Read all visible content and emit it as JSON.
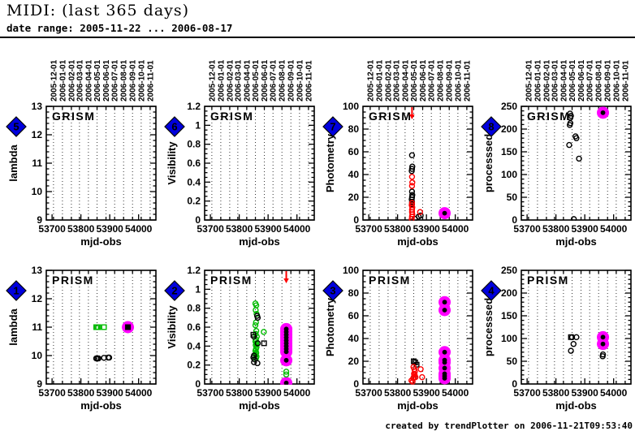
{
  "header": {
    "title": "MIDI: (last 365 days)",
    "subtitle": "date range: 2005-11-22 ... 2006-08-17"
  },
  "footer": {
    "credit": "created by trendPlotter on 2006-11-21T09:53:40"
  },
  "colors": {
    "magenta": "#ff00ff",
    "red": "#ff0000",
    "green": "#00bb00",
    "black": "#000000",
    "badge_blue": "#0000dd",
    "badge_number_yellow": "#ffff00"
  },
  "axes_shared": {
    "x": {
      "label": "mjd-obs",
      "min": 53680,
      "max": 54060,
      "ticks": [
        53700,
        53800,
        53900,
        54000
      ],
      "months": [
        {
          "mjd": 53705,
          "label": "2005-12-01"
        },
        {
          "mjd": 53736,
          "label": "2006-01-01"
        },
        {
          "mjd": 53767,
          "label": "2006-02-01"
        },
        {
          "mjd": 53795,
          "label": "2006-03-01"
        },
        {
          "mjd": 53826,
          "label": "2006-04-01"
        },
        {
          "mjd": 53856,
          "label": "2006-05-01"
        },
        {
          "mjd": 53887,
          "label": "2006-06-01"
        },
        {
          "mjd": 53917,
          "label": "2006-07-01"
        },
        {
          "mjd": 53948,
          "label": "2006-08-01"
        },
        {
          "mjd": 53979,
          "label": "2006-09-01"
        },
        {
          "mjd": 54009,
          "label": "2006-10-01"
        },
        {
          "mjd": 54040,
          "label": "2006-11-01"
        }
      ]
    }
  },
  "chart_data": [
    {
      "id": "grism-lambda",
      "type": "scatter",
      "row": 0,
      "col": 0,
      "marker_number": "5",
      "inset_label": "GRISM",
      "ylabel": "lambda",
      "ylim": [
        9,
        13
      ],
      "yticks": [
        9,
        10,
        11,
        12,
        13
      ],
      "yminor_div": 5,
      "series": [],
      "annotations": []
    },
    {
      "id": "grism-visibility",
      "type": "scatter",
      "row": 0,
      "col": 1,
      "marker_number": "6",
      "inset_label": "GRISM",
      "ylabel": "Visibility",
      "ylim": [
        0,
        1.2
      ],
      "yticks": [
        0,
        0.2,
        0.4,
        0.6,
        0.8,
        1,
        1.2
      ],
      "yminor_div": 4,
      "series": [],
      "annotations": []
    },
    {
      "id": "grism-photometry",
      "type": "scatter",
      "row": 0,
      "col": 2,
      "marker_number": "7",
      "inset_label": "GRISM",
      "ylabel": "Photometry",
      "ylim": [
        0,
        100
      ],
      "yticks": [
        0,
        20,
        40,
        60,
        80,
        100
      ],
      "yminor_div": 4,
      "series": [
        {
          "name": "photometry-black",
          "marker": "circle-open",
          "color": "#000000",
          "points": [
            [
              53850,
              57
            ],
            [
              53851,
              47
            ],
            [
              53850,
              45
            ],
            [
              53849,
              43
            ],
            [
              53850,
              25
            ],
            [
              53851,
              22
            ],
            [
              53850,
              20
            ],
            [
              53849,
              18
            ],
            [
              53850,
              16
            ],
            [
              53850,
              14
            ],
            [
              53873,
              3
            ],
            [
              53880,
              4
            ],
            [
              53860,
              1
            ]
          ]
        },
        {
          "name": "photometry-red",
          "marker": "circle-open",
          "color": "#ff0000",
          "points": [
            [
              53850,
              38
            ],
            [
              53851,
              33
            ],
            [
              53850,
              30
            ],
            [
              53850,
              15
            ],
            [
              53849,
              13
            ],
            [
              53851,
              11
            ],
            [
              53850,
              9
            ],
            [
              53850,
              7
            ],
            [
              53851,
              5
            ],
            [
              53850,
              3
            ],
            [
              53849,
              1
            ],
            [
              53878,
              7
            ]
          ]
        },
        {
          "name": "latest-highlight",
          "marker": "highlight-dot",
          "color": "#ff00ff",
          "points": [
            [
              53963,
              6
            ]
          ]
        }
      ],
      "annotations": [
        {
          "type": "arrow-down",
          "x": 53850,
          "color": "#ff0000"
        }
      ]
    },
    {
      "id": "grism-processsed",
      "type": "scatter",
      "row": 0,
      "col": 3,
      "marker_number": "8",
      "inset_label": "GRISM",
      "ylabel": "processsed",
      "ylim": [
        0,
        250
      ],
      "yticks": [
        0,
        50,
        100,
        150,
        200,
        250
      ],
      "yminor_div": 5,
      "series": [
        {
          "name": "processed-black",
          "marker": "circle-open",
          "color": "#000000",
          "points": [
            [
              53849,
              234
            ],
            [
              53852,
              229
            ],
            [
              53850,
              225
            ],
            [
              53850,
              213
            ],
            [
              53848,
              209
            ],
            [
              53846,
              165
            ],
            [
              53868,
              184
            ],
            [
              53871,
              180
            ],
            [
              53880,
              135
            ],
            [
              53862,
              2
            ]
          ]
        },
        {
          "name": "latest-highlight",
          "marker": "highlight-dot",
          "color": "#ff00ff",
          "points": [
            [
              53963,
              236
            ]
          ]
        }
      ],
      "annotations": []
    },
    {
      "id": "prism-lambda",
      "type": "scatter",
      "row": 1,
      "col": 0,
      "marker_number": "1",
      "inset_label": "PRISM",
      "ylabel": "lambda",
      "ylim": [
        9,
        13
      ],
      "yticks": [
        9,
        10,
        11,
        12,
        13
      ],
      "yminor_div": 5,
      "series": [
        {
          "name": "lambda-green",
          "marker": "square-open",
          "color": "#00bb00",
          "points": [
            [
              53853,
              11
            ],
            [
              53856,
              11
            ],
            [
              53860,
              11
            ],
            [
              53880,
              11
            ]
          ]
        },
        {
          "name": "lambda-black",
          "marker": "circle-open",
          "color": "#000000",
          "points": [
            [
              53853,
              9.9
            ],
            [
              53857,
              9.9
            ],
            [
              53861,
              9.9
            ],
            [
              53880,
              9.92
            ],
            [
              53895,
              9.93
            ],
            [
              53898,
              9.93
            ]
          ]
        },
        {
          "name": "latest-highlight",
          "marker": "highlight-square",
          "color": "#ff00ff",
          "points": [
            [
              53963,
              11
            ]
          ]
        }
      ],
      "annotations": []
    },
    {
      "id": "prism-visibility",
      "type": "scatter",
      "row": 1,
      "col": 1,
      "marker_number": "2",
      "inset_label": "PRISM",
      "ylabel": "Visibility",
      "ylim": [
        0,
        1.2
      ],
      "yticks": [
        0,
        0.2,
        0.4,
        0.6,
        0.8,
        1,
        1.2
      ],
      "yminor_div": 4,
      "series": [
        {
          "name": "visibility-green",
          "marker": "circle-open",
          "color": "#00bb00",
          "points": [
            [
              53856,
              0.85
            ],
            [
              53859,
              0.83
            ],
            [
              53857,
              0.78
            ],
            [
              53860,
              0.74
            ],
            [
              53858,
              0.65
            ],
            [
              53856,
              0.62
            ],
            [
              53859,
              0.56
            ],
            [
              53857,
              0.53
            ],
            [
              53861,
              0.5
            ],
            [
              53858,
              0.47
            ],
            [
              53856,
              0.45
            ],
            [
              53859,
              0.43
            ],
            [
              53857,
              0.41
            ],
            [
              53860,
              0.39
            ],
            [
              53858,
              0.37
            ],
            [
              53856,
              0.35
            ],
            [
              53859,
              0.33
            ],
            [
              53857,
              0.31
            ],
            [
              53860,
              0.29
            ],
            [
              53858,
              0.27
            ],
            [
              53885,
              0.55
            ],
            [
              53963,
              0.13
            ],
            [
              53963,
              0.1
            ]
          ]
        },
        {
          "name": "visibility-black",
          "marker": "circle-open",
          "color": "#000000",
          "points": [
            [
              53862,
              0.72
            ],
            [
              53864,
              0.7
            ],
            [
              53851,
              0.5
            ],
            [
              53864,
              0.43
            ],
            [
              53851,
              0.3
            ],
            [
              53849,
              0.28
            ],
            [
              53853,
              0.26
            ],
            [
              53851,
              0.23
            ],
            [
              53863,
              0.22
            ]
          ]
        },
        {
          "name": "visibility-black-sq",
          "marker": "square-open",
          "color": "#000000",
          "points": [
            [
              53849,
              0.52
            ],
            [
              53886,
              0.43
            ]
          ]
        },
        {
          "name": "latest-highlight",
          "marker": "highlight-dot",
          "color": "#ff00ff",
          "points": [
            [
              53963,
              0.58
            ],
            [
              53963,
              0.55
            ],
            [
              53963,
              0.52
            ],
            [
              53963,
              0.49
            ],
            [
              53963,
              0.46
            ],
            [
              53963,
              0.43
            ],
            [
              53963,
              0.4
            ],
            [
              53963,
              0.37
            ],
            [
              53963,
              0.34
            ],
            [
              53963,
              0.25
            ],
            [
              53963,
              0.01
            ]
          ]
        }
      ],
      "annotations": [
        {
          "type": "arrow-down",
          "x": 53963,
          "color": "#ff0000"
        }
      ]
    },
    {
      "id": "prism-photometry",
      "type": "scatter",
      "row": 1,
      "col": 2,
      "marker_number": "3",
      "inset_label": "PRISM",
      "ylabel": "Photometry",
      "ylim": [
        0,
        100
      ],
      "yticks": [
        0,
        20,
        40,
        60,
        80,
        100
      ],
      "yminor_div": 4,
      "series": [
        {
          "name": "photometry-black-sq",
          "marker": "square-open",
          "color": "#000000",
          "points": [
            [
              53856,
              20
            ],
            [
              53861,
              19
            ],
            [
              53866,
              17
            ]
          ]
        },
        {
          "name": "photometry-black",
          "marker": "circle-open",
          "color": "#000000",
          "points": [
            [
              53858,
              8
            ],
            [
              53861,
              6
            ]
          ]
        },
        {
          "name": "photometry-red",
          "marker": "circle-open",
          "color": "#ff0000",
          "points": [
            [
              53855,
              15
            ],
            [
              53858,
              13
            ],
            [
              53860,
              11
            ],
            [
              53857,
              9
            ],
            [
              53859,
              8
            ],
            [
              53856,
              6
            ],
            [
              53854,
              5
            ],
            [
              53862,
              6
            ],
            [
              53880,
              13
            ],
            [
              53885,
              6
            ],
            [
              53848,
              3
            ],
            [
              53852,
              2
            ]
          ]
        },
        {
          "name": "latest-highlight",
          "marker": "highlight-dot",
          "color": "#ff00ff",
          "points": [
            [
              53963,
              72
            ],
            [
              53963,
              65
            ],
            [
              53963,
              28
            ],
            [
              53963,
              21
            ],
            [
              53963,
              19
            ],
            [
              53963,
              14
            ],
            [
              53963,
              9
            ],
            [
              53963,
              7
            ],
            [
              53963,
              5
            ]
          ]
        }
      ],
      "annotations": []
    },
    {
      "id": "prism-processsed",
      "type": "scatter",
      "row": 1,
      "col": 3,
      "marker_number": "4",
      "inset_label": "PRISM",
      "ylabel": "processsed",
      "ylim": [
        0,
        250
      ],
      "yticks": [
        0,
        50,
        100,
        150,
        200,
        250
      ],
      "yminor_div": 5,
      "series": [
        {
          "name": "processed-black-sq",
          "marker": "square-open",
          "color": "#000000",
          "points": [
            [
              53852,
              103
            ]
          ]
        },
        {
          "name": "processed-black",
          "marker": "circle-open",
          "color": "#000000",
          "points": [
            [
              53856,
              103
            ],
            [
              53871,
              103
            ],
            [
              53861,
              88
            ],
            [
              53852,
              73
            ],
            [
              53963,
              65
            ],
            [
              53962,
              61
            ]
          ]
        },
        {
          "name": "latest-highlight",
          "marker": "highlight-dot",
          "color": "#ff00ff",
          "points": [
            [
              53963,
              103
            ],
            [
              53963,
              88
            ]
          ]
        }
      ],
      "annotations": []
    }
  ]
}
